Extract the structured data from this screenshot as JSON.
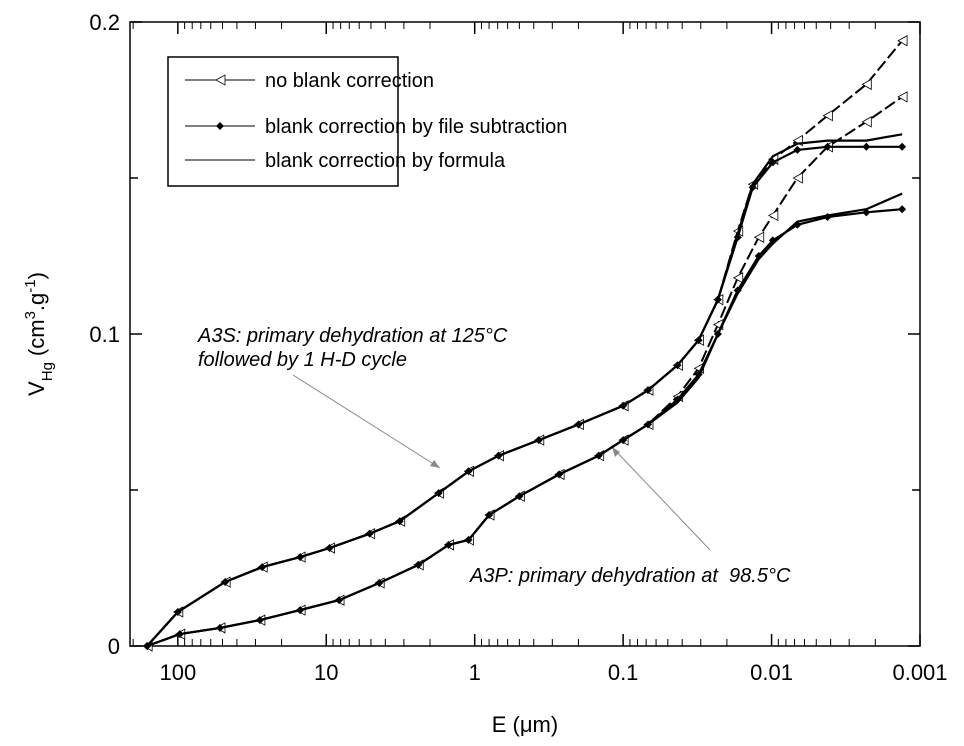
{
  "chart_data": {
    "type": "line",
    "x_label": "E (μm)",
    "y_label": {
      "main": "V",
      "sub": "Hg",
      "unit": "(cm",
      "sup1": "3",
      "mid": ".g",
      "sup2": "-1",
      "end": ")"
    },
    "log_x": true,
    "xlim": [
      210,
      0.001
    ],
    "ylim": [
      0,
      0.2
    ],
    "xticks": [
      100,
      10,
      1,
      0.1,
      0.01,
      0.001
    ],
    "yticks": [
      0,
      0.1,
      0.2
    ],
    "y_minor_ticks": [
      0.05,
      0.15
    ],
    "series": [
      {
        "name": "no blank correction",
        "color": "#000000",
        "marker": "triangle",
        "dashed": true,
        "curves": [
          {
            "x": [
              161,
              100,
              48,
              27,
              15,
              9.5,
              5.1,
              3.2,
              1.75,
              1.1,
              0.69,
              0.37,
              0.2,
              0.1,
              0.068,
              0.043,
              0.031,
              0.023,
              0.0169,
              0.0134,
              0.0098,
              0.0067,
              0.0042,
              0.0023,
              0.00132
            ],
            "values": [
              0,
              0.0109,
              0.0205,
              0.0253,
              0.0285,
              0.0314,
              0.036,
              0.04,
              0.049,
              0.056,
              0.061,
              0.066,
              0.071,
              0.077,
              0.082,
              0.09,
              0.098,
              0.111,
              0.133,
              0.148,
              0.156,
              0.162,
              0.17,
              0.18,
              0.194
            ]
          },
          {
            "x": [
              161,
              97,
              52,
              28,
              15,
              8.2,
              4.4,
              2.4,
              1.5,
              1.1,
              0.8,
              0.5,
              0.27,
              0.146,
              0.1,
              0.068,
              0.043,
              0.031,
              0.023,
              0.0169,
              0.0122,
              0.0098,
              0.0067,
              0.0042,
              0.0023,
              0.00132
            ],
            "values": [
              0,
              0.0038,
              0.0058,
              0.0083,
              0.0115,
              0.0147,
              0.0202,
              0.026,
              0.0324,
              0.034,
              0.042,
              0.048,
              0.055,
              0.061,
              0.066,
              0.071,
              0.08,
              0.089,
              0.103,
              0.118,
              0.131,
              0.138,
              0.15,
              0.16,
              0.168,
              0.176
            ]
          }
        ]
      },
      {
        "name": "blank correction by file subtraction",
        "color": "#000000",
        "marker": "diamond",
        "dashed": false,
        "curves": [
          {
            "x": [
              161,
              100,
              48,
              27,
              15,
              9.5,
              5.1,
              3.2,
              1.75,
              1.1,
              0.69,
              0.37,
              0.2,
              0.1,
              0.068,
              0.043,
              0.031,
              0.023,
              0.0169,
              0.0134,
              0.0098,
              0.0067,
              0.0042,
              0.0023,
              0.00132
            ],
            "values": [
              0,
              0.0109,
              0.0205,
              0.0253,
              0.0285,
              0.0314,
              0.036,
              0.04,
              0.049,
              0.056,
              0.061,
              0.066,
              0.071,
              0.077,
              0.082,
              0.09,
              0.098,
              0.111,
              0.131,
              0.147,
              0.155,
              0.159,
              0.16,
              0.16,
              0.16
            ]
          },
          {
            "x": [
              161,
              97,
              52,
              28,
              15,
              8.2,
              4.4,
              2.4,
              1.5,
              1.1,
              0.8,
              0.5,
              0.27,
              0.146,
              0.1,
              0.068,
              0.043,
              0.031,
              0.023,
              0.0169,
              0.0122,
              0.0098,
              0.0067,
              0.0042,
              0.0023,
              0.00132
            ],
            "values": [
              0,
              0.0038,
              0.0058,
              0.0083,
              0.0115,
              0.0147,
              0.0202,
              0.026,
              0.0324,
              0.034,
              0.042,
              0.048,
              0.055,
              0.061,
              0.066,
              0.071,
              0.079,
              0.087,
              0.1,
              0.114,
              0.125,
              0.13,
              0.135,
              0.1375,
              0.139,
              0.14
            ]
          }
        ]
      },
      {
        "name": "blank correction by formula",
        "color": "#000000",
        "marker": "none",
        "dashed": false,
        "curves": [
          {
            "x": [
              161,
              100,
              48,
              27,
              15,
              9.5,
              5.1,
              3.2,
              1.75,
              1.1,
              0.69,
              0.37,
              0.2,
              0.1,
              0.068,
              0.043,
              0.031,
              0.023,
              0.0169,
              0.0134,
              0.0098,
              0.0067,
              0.0042,
              0.0023,
              0.00132
            ],
            "values": [
              0,
              0.0109,
              0.0205,
              0.0253,
              0.0285,
              0.0314,
              0.036,
              0.04,
              0.049,
              0.056,
              0.061,
              0.066,
              0.071,
              0.077,
              0.082,
              0.09,
              0.098,
              0.111,
              0.132,
              0.148,
              0.157,
              0.161,
              0.162,
              0.162,
              0.164
            ]
          },
          {
            "x": [
              161,
              97,
              52,
              28,
              15,
              8.2,
              4.4,
              2.4,
              1.5,
              1.1,
              0.8,
              0.5,
              0.27,
              0.146,
              0.1,
              0.068,
              0.043,
              0.031,
              0.023,
              0.0169,
              0.0122,
              0.0098,
              0.0067,
              0.0042,
              0.0023,
              0.00132
            ],
            "values": [
              0,
              0.0038,
              0.0058,
              0.0083,
              0.0115,
              0.0147,
              0.0202,
              0.026,
              0.0324,
              0.034,
              0.042,
              0.048,
              0.055,
              0.061,
              0.066,
              0.071,
              0.078,
              0.086,
              0.1,
              0.113,
              0.124,
              0.129,
              0.136,
              0.138,
              0.14,
              0.145
            ]
          }
        ]
      }
    ],
    "annotations": [
      {
        "lines": [
          "A3S: primary dehydration at 125°C",
          "followed by 1 H-D cycle"
        ]
      },
      {
        "lines": [
          "A3P: primary dehydration at  98.5°C"
        ]
      }
    ]
  }
}
